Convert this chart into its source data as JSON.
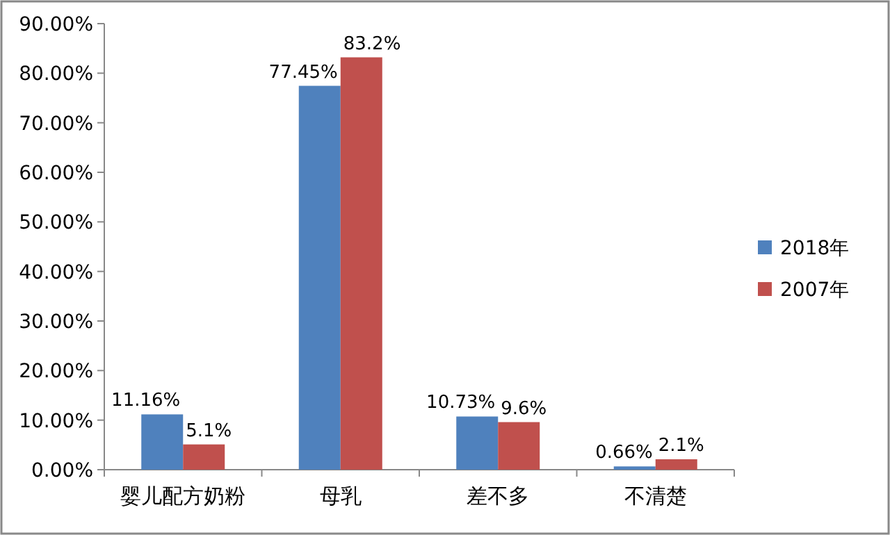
{
  "chart_data": {
    "type": "bar",
    "categories": [
      "婴儿配方奶粉",
      "母乳",
      "差不多",
      "不清楚"
    ],
    "series": [
      {
        "name": "2018年",
        "color": "#4f81bd",
        "values": [
          11.16,
          77.45,
          10.73,
          0.66
        ],
        "value_labels": [
          "11.16%",
          "77.45%",
          "10.73%",
          "0.66%"
        ]
      },
      {
        "name": "2007年",
        "color": "#c0504d",
        "values": [
          5.1,
          83.2,
          9.6,
          2.1
        ],
        "value_labels": [
          "5.1%",
          "83.2%",
          "9.6%",
          "2.1%"
        ]
      }
    ],
    "ylim": [
      0,
      90
    ],
    "yticks": [
      {
        "value": 0,
        "label": "0.00%"
      },
      {
        "value": 10,
        "label": "10.00%"
      },
      {
        "value": 20,
        "label": "20.00%"
      },
      {
        "value": 30,
        "label": "30.00%"
      },
      {
        "value": 40,
        "label": "40.00%"
      },
      {
        "value": 50,
        "label": "50.00%"
      },
      {
        "value": 60,
        "label": "60.00%"
      },
      {
        "value": 70,
        "label": "70.00%"
      },
      {
        "value": 80,
        "label": "80.00%"
      },
      {
        "value": 90,
        "label": "90.00%"
      }
    ],
    "legend": "right"
  }
}
